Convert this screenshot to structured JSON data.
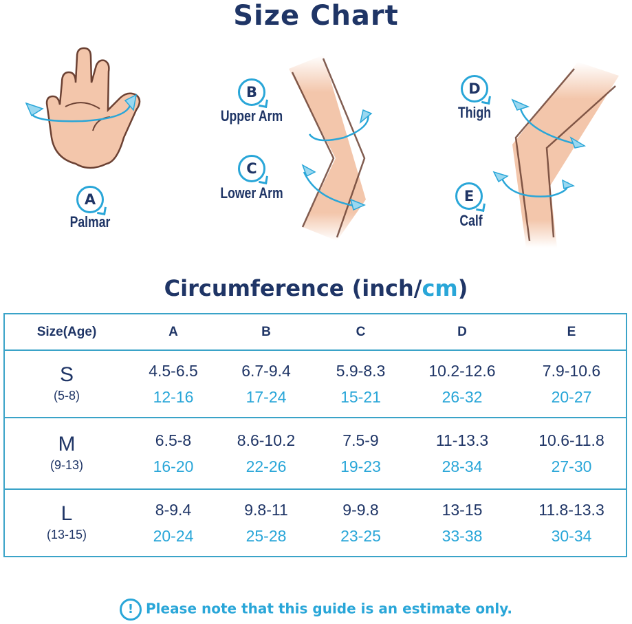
{
  "title": "Size Chart",
  "colors": {
    "navy": "#1f3566",
    "accent": "#29a6d8",
    "skin": "#f3c6ab"
  },
  "measurements": [
    {
      "letter": "A",
      "label": "Palmar"
    },
    {
      "letter": "B",
      "label": "Upper Arm"
    },
    {
      "letter": "C",
      "label": "Lower Arm"
    },
    {
      "letter": "D",
      "label": "Thigh"
    },
    {
      "letter": "E",
      "label": "Calf"
    }
  ],
  "circumference": {
    "prefix": "Circumference (inch/",
    "unit_cm": "cm",
    "suffix": ")"
  },
  "table": {
    "headers": [
      "Size(Age)",
      "A",
      "B",
      "C",
      "D",
      "E"
    ],
    "rows": [
      {
        "size": "S",
        "age": "(5-8)",
        "inch": [
          "4.5-6.5",
          "6.7-9.4",
          "5.9-8.3",
          "10.2-12.6",
          "7.9-10.6"
        ],
        "cm": [
          "12-16",
          "17-24",
          "15-21",
          "26-32",
          "20-27"
        ]
      },
      {
        "size": "M",
        "age": "(9-13)",
        "inch": [
          "6.5-8",
          "8.6-10.2",
          "7.5-9",
          "11-13.3",
          "10.6-11.8"
        ],
        "cm": [
          "16-20",
          "22-26",
          "19-23",
          "28-34",
          "27-30"
        ]
      },
      {
        "size": "L",
        "age": "(13-15)",
        "inch": [
          "8-9.4",
          "9.8-11",
          "9-9.8",
          "13-15",
          "11.8-13.3"
        ],
        "cm": [
          "20-24",
          "25-28",
          "23-25",
          "33-38",
          "30-34"
        ]
      }
    ]
  },
  "note": {
    "icon": "exclamation-bubble-icon",
    "icon_glyph": "!",
    "text": "Please note that this guide is an estimate only."
  }
}
